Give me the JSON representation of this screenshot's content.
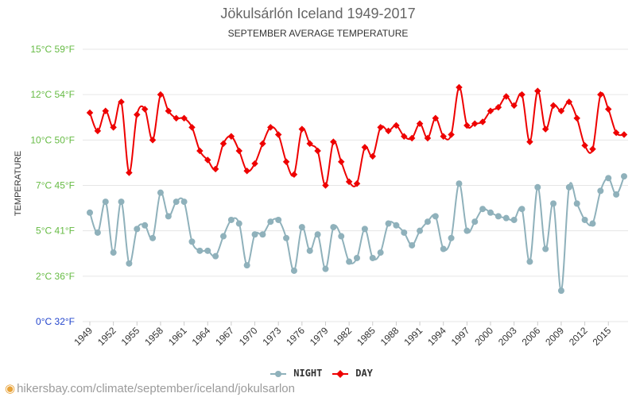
{
  "chart_data": {
    "type": "line",
    "title": "Jökulsárlón Iceland 1949-2017",
    "subtitle": "SEPTEMBER AVERAGE TEMPERATURE",
    "ylabel": "TEMPERATURE",
    "xlabel": "",
    "ylim": [
      0,
      15
    ],
    "y_ticks": [
      {
        "value": 0,
        "label": "0°C 32°F",
        "color": "#2244cc"
      },
      {
        "value": 2.5,
        "label": "2°C 36°F",
        "color": "#66bb44"
      },
      {
        "value": 5,
        "label": "5°C 41°F",
        "color": "#66bb44"
      },
      {
        "value": 7.5,
        "label": "7°C 45°F",
        "color": "#66bb44"
      },
      {
        "value": 10,
        "label": "10°C 50°F",
        "color": "#66bb44"
      },
      {
        "value": 12.5,
        "label": "12°C 54°F",
        "color": "#66bb44"
      },
      {
        "value": 15,
        "label": "15°C 59°F",
        "color": "#66bb44"
      }
    ],
    "x_tick_labels": [
      "1949",
      "1952",
      "1955",
      "1958",
      "1961",
      "1964",
      "1967",
      "1970",
      "1973",
      "1976",
      "1979",
      "1982",
      "1985",
      "1988",
      "1991",
      "1994",
      "1997",
      "2000",
      "2003",
      "2006",
      "2009",
      "2012",
      "2015"
    ],
    "x": [
      1949,
      1950,
      1951,
      1952,
      1953,
      1954,
      1955,
      1956,
      1957,
      1958,
      1959,
      1960,
      1961,
      1962,
      1963,
      1964,
      1965,
      1966,
      1967,
      1968,
      1969,
      1970,
      1971,
      1972,
      1973,
      1974,
      1975,
      1976,
      1977,
      1978,
      1979,
      1980,
      1981,
      1982,
      1983,
      1984,
      1985,
      1986,
      1987,
      1988,
      1989,
      1990,
      1991,
      1992,
      1993,
      1994,
      1995,
      1996,
      1997,
      1998,
      1999,
      2000,
      2001,
      2002,
      2003,
      2004,
      2005,
      2006,
      2007,
      2008,
      2009,
      2010,
      2011,
      2012,
      2013,
      2014,
      2015,
      2016,
      2017
    ],
    "series": [
      {
        "name": "NIGHT",
        "color": "#8fb1bb",
        "marker": "circle",
        "values": [
          6.0,
          4.9,
          6.6,
          3.8,
          6.6,
          3.2,
          5.1,
          5.3,
          4.6,
          7.1,
          5.8,
          6.6,
          6.6,
          4.4,
          3.9,
          3.9,
          3.6,
          4.7,
          5.6,
          5.4,
          3.1,
          4.8,
          4.8,
          5.5,
          5.6,
          4.6,
          2.8,
          5.2,
          3.9,
          4.8,
          2.9,
          5.2,
          4.7,
          3.3,
          3.5,
          5.1,
          3.5,
          3.8,
          5.4,
          5.3,
          4.9,
          4.2,
          5.0,
          5.5,
          5.8,
          4.0,
          4.6,
          7.6,
          5.0,
          5.5,
          6.2,
          6.0,
          5.8,
          5.7,
          5.6,
          6.2,
          3.3,
          7.4,
          4.0,
          6.5,
          1.7,
          7.4,
          6.5,
          5.6,
          5.4,
          7.2,
          7.9,
          7.0,
          8.0
        ]
      },
      {
        "name": "DAY",
        "color": "#ee0000",
        "marker": "diamond",
        "values": [
          11.5,
          10.5,
          11.6,
          10.7,
          12.1,
          8.2,
          11.4,
          11.7,
          10.0,
          12.5,
          11.6,
          11.2,
          11.2,
          10.7,
          9.4,
          8.9,
          8.4,
          9.8,
          10.2,
          9.4,
          8.3,
          8.7,
          9.8,
          10.7,
          10.3,
          8.8,
          8.1,
          10.6,
          9.8,
          9.4,
          7.5,
          9.9,
          8.8,
          7.7,
          7.6,
          9.6,
          9.1,
          10.7,
          10.5,
          10.8,
          10.2,
          10.1,
          10.9,
          10.1,
          11.2,
          10.2,
          10.3,
          12.9,
          10.8,
          10.9,
          11.0,
          11.6,
          11.8,
          12.4,
          11.9,
          12.5,
          9.9,
          12.7,
          10.6,
          11.9,
          11.6,
          12.1,
          11.2,
          9.7,
          9.5,
          12.5,
          11.7,
          10.4,
          10.3
        ]
      }
    ],
    "legend": [
      {
        "name": "NIGHT",
        "color": "#8fb1bb"
      },
      {
        "name": "DAY",
        "color": "#ee0000"
      }
    ],
    "legend_position": "bottom-center",
    "grid": true
  },
  "footer": {
    "url_text": "hikersbay.com/climate/september/iceland/jokulsarlon"
  }
}
